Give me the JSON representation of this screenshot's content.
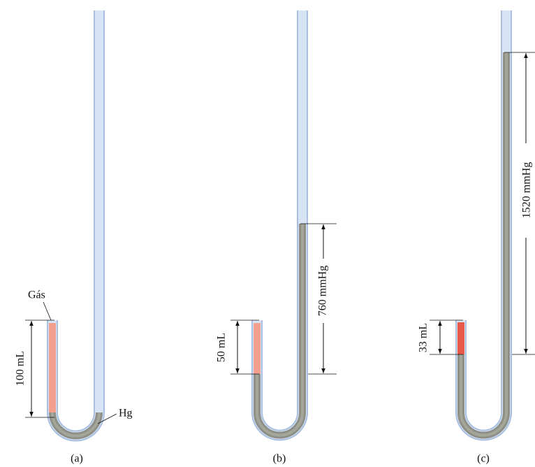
{
  "panels": [
    {
      "caption": "(a)",
      "gas_label": "Gás",
      "hg_label": "Hg",
      "volume_label": "100 mL"
    },
    {
      "caption": "(b)",
      "volume_label": "50 mL",
      "pressure_label": "760 mmHg"
    },
    {
      "caption": "(c)",
      "volume_label": "33 mL",
      "pressure_label": "1520 mmHg"
    }
  ]
}
